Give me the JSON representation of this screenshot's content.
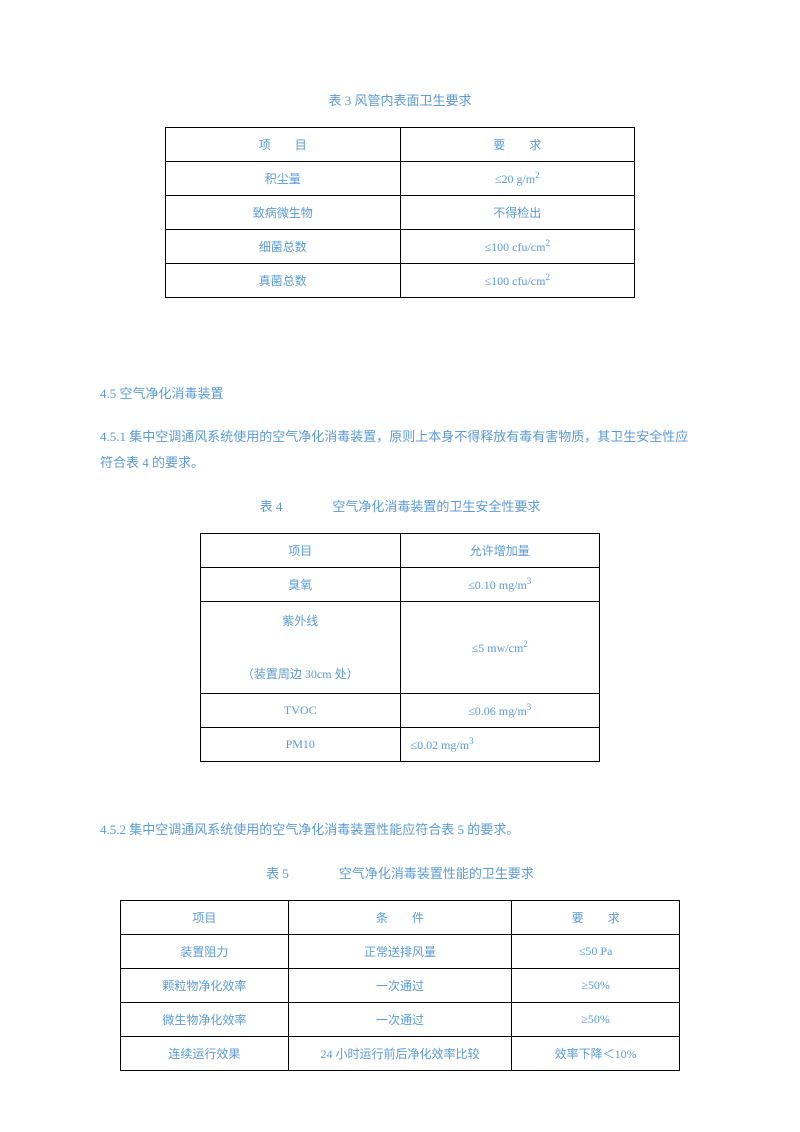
{
  "colors": {
    "text": "#5b9bd5",
    "border": "#000000",
    "background": "#ffffff"
  },
  "fonts": {
    "body_family": "SimSun",
    "body_size_pt": 10
  },
  "table1": {
    "caption": "表 3 风管内表面卫生要求",
    "header": {
      "c1": "项　　目",
      "c2": "要　　求"
    },
    "rows": [
      {
        "c1": "积尘量",
        "c2_prefix": "≤20 g/m",
        "c2_sup": "2"
      },
      {
        "c1": "致病微生物",
        "c2_prefix": "不得检出",
        "c2_sup": ""
      },
      {
        "c1": "细菌总数",
        "c2_prefix": "≤100 cfu/cm",
        "c2_sup": "2"
      },
      {
        "c1": "真菌总数",
        "c2_prefix": "≤100 cfu/cm",
        "c2_sup": "2"
      }
    ]
  },
  "section_4_5": {
    "heading": "4.5 空气净化消毒装置",
    "para_4_5_1": "4.5.1 集中空调通风系统使用的空气净化消毒装置，原则上本身不得释放有毒有害物质，其卫生安全性应符合表 4 的要求。"
  },
  "table2": {
    "caption_prefix": "表 4",
    "caption_text": "空气净化消毒装置的卫生安全性要求",
    "header": {
      "c1": "项目",
      "c2": "允许增加量"
    },
    "rows": [
      {
        "c1_line1": "臭氧",
        "c1_line2": "",
        "c2_prefix": "≤0.10 mg/m",
        "c2_sup": "3"
      },
      {
        "c1_line1": "紫外线",
        "c1_line2": "（装置周边 30cm 处）",
        "c2_prefix": "≤5 mw/cm",
        "c2_sup": "2"
      },
      {
        "c1_line1": "TVOC",
        "c1_line2": "",
        "c2_prefix": "≤0.06 mg/m",
        "c2_sup": "3"
      },
      {
        "c1_line1": "PM10",
        "c1_line2": "",
        "c2_prefix": "≤0.02 mg/m",
        "c2_sup": "3",
        "left_align": true
      }
    ]
  },
  "section_4_5_2": {
    "para": "4.5.2 集中空调通风系统使用的空气净化消毒装置性能应符合表 5 的要求。"
  },
  "table3": {
    "caption_prefix": "表 5",
    "caption_text": "空气净化消毒装置性能的卫生要求",
    "header": {
      "c1": "项目",
      "c2": "条　　件",
      "c3": "要　　求"
    },
    "rows": [
      {
        "c1": "装置阻力",
        "c2": "正常送排风量",
        "c3": "≤50 Pa"
      },
      {
        "c1": "颗粒物净化效率",
        "c2": "一次通过",
        "c3": "≥50%"
      },
      {
        "c1": "微生物净化效率",
        "c2": "一次通过",
        "c3": "≥50%"
      },
      {
        "c1": "连续运行效果",
        "c2": "24 小时运行前后净化效率比较",
        "c3": "效率下降＜10%"
      }
    ]
  }
}
